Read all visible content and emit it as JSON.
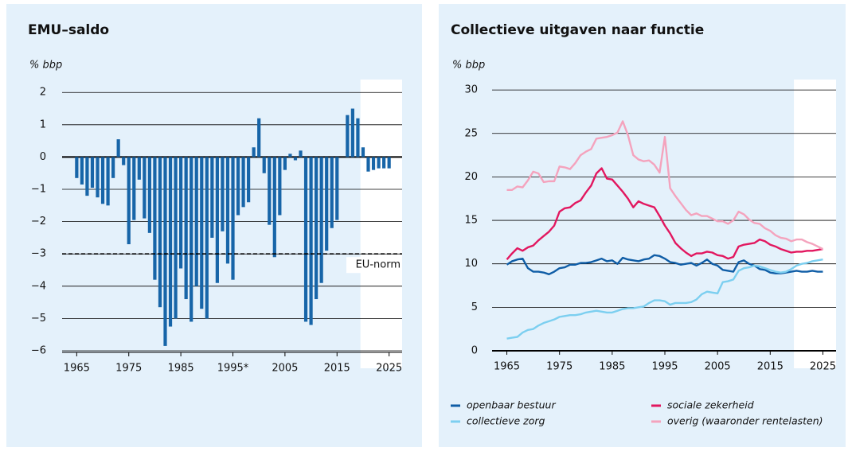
{
  "chart_data": [
    {
      "type": "bar",
      "title": "EMU–saldo",
      "y_label": "% bbp",
      "color": "#1765a8",
      "x": [
        1965,
        1966,
        1967,
        1968,
        1969,
        1970,
        1971,
        1972,
        1973,
        1974,
        1975,
        1976,
        1977,
        1978,
        1979,
        1980,
        1981,
        1982,
        1983,
        1984,
        1985,
        1986,
        1987,
        1988,
        1989,
        1990,
        1991,
        1992,
        1993,
        1994,
        1995,
        1996,
        1997,
        1998,
        1999,
        2000,
        2001,
        2002,
        2003,
        2004,
        2005,
        2006,
        2007,
        2008,
        2009,
        2010,
        2011,
        2012,
        2013,
        2014,
        2015,
        2016,
        2017,
        2018,
        2019,
        2020,
        2021,
        2022,
        2023,
        2024,
        2025
      ],
      "values": [
        -0.65,
        -0.85,
        -1.2,
        -0.95,
        -1.25,
        -1.45,
        -1.5,
        -0.65,
        0.55,
        -0.25,
        -2.7,
        -1.95,
        -0.7,
        -1.9,
        -2.35,
        -3.8,
        -4.65,
        -5.85,
        -5.25,
        -5.0,
        -3.45,
        -4.4,
        -5.1,
        -4.0,
        -4.7,
        -5.0,
        -2.5,
        -3.9,
        -2.3,
        -3.3,
        -3.8,
        -1.8,
        -1.55,
        -1.4,
        0.3,
        1.2,
        -0.5,
        -2.1,
        -3.1,
        -1.8,
        -0.4,
        0.1,
        -0.1,
        0.2,
        -5.1,
        -5.2,
        -4.4,
        -3.9,
        -2.9,
        -2.2,
        -1.95,
        0,
        1.3,
        1.5,
        1.2,
        0.3,
        -0.45,
        -0.4,
        -0.35,
        -0.35,
        -0.35
      ],
      "xlim": [
        1962.5,
        2027.5
      ],
      "xticks": [
        1965,
        1975,
        1985,
        {
          "value": 1995,
          "label": "1995*"
        },
        2005,
        2015,
        2025
      ],
      "ylim": [
        -6,
        2.4
      ],
      "yticks": [
        2,
        1,
        0,
        {
          "value": -1,
          "label": "−1"
        },
        {
          "value": -2,
          "label": "−2"
        },
        {
          "value": -3,
          "label": "−3"
        },
        {
          "value": -4,
          "label": "−4"
        },
        {
          "value": -5,
          "label": "−5"
        },
        {
          "value": -6,
          "label": "−6"
        }
      ],
      "grid": true,
      "shaded_xrange": [
        2019.5,
        2027.5
      ],
      "reference_line": {
        "value": -3,
        "label": "EU-norm"
      }
    },
    {
      "type": "line",
      "title": "Collectieve uitgaven naar functie",
      "y_label": "% bbp",
      "x": [
        1965,
        1966,
        1967,
        1968,
        1969,
        1970,
        1971,
        1972,
        1973,
        1974,
        1975,
        1976,
        1977,
        1978,
        1979,
        1980,
        1981,
        1982,
        1983,
        1984,
        1985,
        1986,
        1987,
        1988,
        1989,
        1990,
        1991,
        1992,
        1993,
        1994,
        1995,
        1996,
        1997,
        1998,
        1999,
        2000,
        2001,
        2002,
        2003,
        2004,
        2005,
        2006,
        2007,
        2008,
        2009,
        2010,
        2011,
        2012,
        2013,
        2014,
        2015,
        2016,
        2017,
        2018,
        2019,
        2020,
        2021,
        2022,
        2023,
        2024,
        2025
      ],
      "series": [
        {
          "name": "openbaar bestuur",
          "color": "#0f5da6",
          "values": [
            9.9,
            10.3,
            10.5,
            10.6,
            9.5,
            9.1,
            9.1,
            9.0,
            8.8,
            9.1,
            9.5,
            9.6,
            9.9,
            9.9,
            10.1,
            10.1,
            10.2,
            10.4,
            10.6,
            10.3,
            10.4,
            10.0,
            10.7,
            10.5,
            10.4,
            10.3,
            10.5,
            10.6,
            11.0,
            10.9,
            10.6,
            10.2,
            10.1,
            9.9,
            10.0,
            10.1,
            9.8,
            10.1,
            10.5,
            10.0,
            9.8,
            9.3,
            9.2,
            9.1,
            10.2,
            10.4,
            10.0,
            9.8,
            9.4,
            9.3,
            9.0,
            8.9,
            8.9,
            9.0,
            9.1,
            9.2,
            9.1,
            9.1,
            9.2,
            9.1,
            9.1
          ]
        },
        {
          "name": "sociale zekerheid",
          "color": "#e2175f",
          "values": [
            10.5,
            11.2,
            11.8,
            11.5,
            11.9,
            12.1,
            12.7,
            13.2,
            13.7,
            14.4,
            16.0,
            16.4,
            16.5,
            17.0,
            17.3,
            18.2,
            19.0,
            20.4,
            21.0,
            19.8,
            19.7,
            19.0,
            18.3,
            17.5,
            16.5,
            17.2,
            16.9,
            16.7,
            16.5,
            15.5,
            14.4,
            13.5,
            12.4,
            11.8,
            11.3,
            10.9,
            11.2,
            11.2,
            11.4,
            11.3,
            11.0,
            10.9,
            10.6,
            10.8,
            12.0,
            12.2,
            12.3,
            12.4,
            12.8,
            12.6,
            12.2,
            12.0,
            11.7,
            11.5,
            11.3,
            11.4,
            11.4,
            11.5,
            11.5,
            11.6,
            11.7
          ]
        },
        {
          "name": "collectieve zorg",
          "color": "#7ccff0",
          "values": [
            1.4,
            1.5,
            1.6,
            2.1,
            2.4,
            2.5,
            2.9,
            3.2,
            3.4,
            3.6,
            3.9,
            4.0,
            4.1,
            4.1,
            4.2,
            4.4,
            4.5,
            4.6,
            4.5,
            4.4,
            4.4,
            4.6,
            4.8,
            4.9,
            4.9,
            5.0,
            5.1,
            5.5,
            5.8,
            5.8,
            5.7,
            5.3,
            5.5,
            5.5,
            5.5,
            5.6,
            5.9,
            6.5,
            6.8,
            6.7,
            6.6,
            7.9,
            8.0,
            8.2,
            9.2,
            9.5,
            9.6,
            9.8,
            9.7,
            9.5,
            9.3,
            9.1,
            9.0,
            9.1,
            9.4,
            9.8,
            10.0,
            10.1,
            10.3,
            10.4,
            10.5
          ]
        },
        {
          "name": "overig (waaronder rentelasten)",
          "color": "#f4a3bd",
          "values": [
            18.5,
            18.5,
            18.9,
            18.8,
            19.6,
            20.6,
            20.4,
            19.4,
            19.5,
            19.5,
            21.2,
            21.1,
            20.9,
            21.6,
            22.5,
            22.9,
            23.2,
            24.4,
            24.5,
            24.6,
            24.8,
            25.1,
            26.4,
            24.8,
            22.5,
            22.0,
            21.8,
            21.9,
            21.4,
            20.5,
            24.6,
            18.7,
            17.8,
            17.0,
            16.2,
            15.6,
            15.8,
            15.5,
            15.5,
            15.2,
            14.9,
            14.9,
            14.6,
            15.0,
            16.0,
            15.7,
            15.1,
            14.7,
            14.6,
            14.1,
            13.8,
            13.3,
            13.0,
            12.9,
            12.6,
            12.8,
            12.8,
            12.5,
            12.3,
            12.0,
            11.7
          ]
        }
      ],
      "xlim": [
        1962.5,
        2027.5
      ],
      "xticks": [
        1965,
        1975,
        1985,
        1995,
        2005,
        2015,
        2025
      ],
      "ylim": [
        0,
        31.2
      ],
      "yticks": [
        0,
        5,
        10,
        15,
        20,
        25,
        30
      ],
      "grid": true,
      "shaded_xrange": [
        2019.5,
        2027.5
      ],
      "legend": "bottom"
    }
  ]
}
